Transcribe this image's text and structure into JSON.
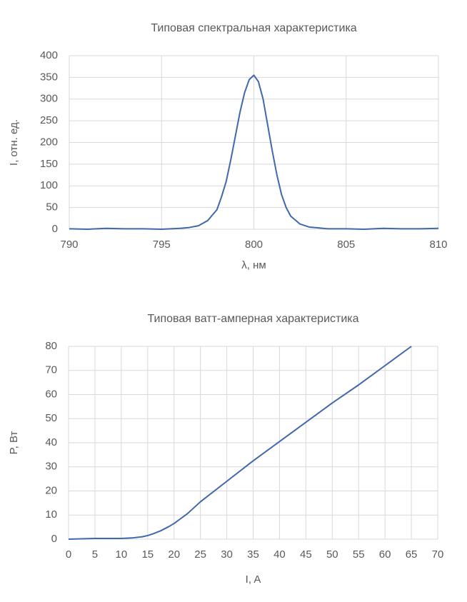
{
  "chart_data": [
    {
      "type": "line",
      "title": "Типовая спектральная характеристика",
      "xlabel": "λ, нм",
      "ylabel": "I, отн. ед.",
      "x": [
        790,
        791,
        792,
        793,
        794,
        795,
        796,
        796.5,
        797,
        797.5,
        798,
        798.25,
        798.5,
        798.75,
        799,
        799.25,
        799.5,
        799.75,
        800,
        800.25,
        800.5,
        800.75,
        801,
        801.25,
        801.5,
        801.75,
        802,
        802.5,
        803,
        803.5,
        804,
        805,
        806,
        807,
        808,
        809,
        810
      ],
      "values": [
        1,
        0,
        2,
        1,
        1,
        0,
        2,
        4,
        8,
        20,
        45,
        75,
        110,
        160,
        215,
        270,
        315,
        345,
        355,
        340,
        300,
        240,
        180,
        125,
        80,
        50,
        30,
        12,
        5,
        3,
        1,
        1,
        0,
        2,
        1,
        1,
        2
      ],
      "color": "#4068ad",
      "xlim": [
        790,
        810
      ],
      "ylim": [
        0,
        400
      ],
      "xticks": [
        790,
        795,
        800,
        805,
        810
      ],
      "yticks": [
        0,
        50,
        100,
        150,
        200,
        250,
        300,
        350,
        400
      ],
      "grid": true
    },
    {
      "type": "line",
      "title": "Типовая ватт-амперная характеристика",
      "xlabel": "I, A",
      "ylabel": "P, Вт",
      "x": [
        0,
        5,
        10,
        12,
        14,
        15,
        16,
        17.5,
        19,
        20,
        22.5,
        25,
        30,
        35,
        40,
        45,
        50,
        55,
        60,
        65
      ],
      "values": [
        0,
        0.3,
        0.3,
        0.5,
        1,
        1.5,
        2.2,
        3.5,
        5.2,
        6.5,
        10.5,
        15.5,
        24,
        32.5,
        40.5,
        48.5,
        56.5,
        64,
        72,
        80
      ],
      "color": "#4068ad",
      "xlim": [
        0,
        70
      ],
      "ylim": [
        0,
        80
      ],
      "xticks": [
        0,
        5,
        10,
        15,
        20,
        25,
        30,
        35,
        40,
        45,
        50,
        55,
        60,
        65,
        70
      ],
      "yticks": [
        0,
        10,
        20,
        30,
        40,
        50,
        60,
        70,
        80
      ],
      "grid": true
    }
  ]
}
